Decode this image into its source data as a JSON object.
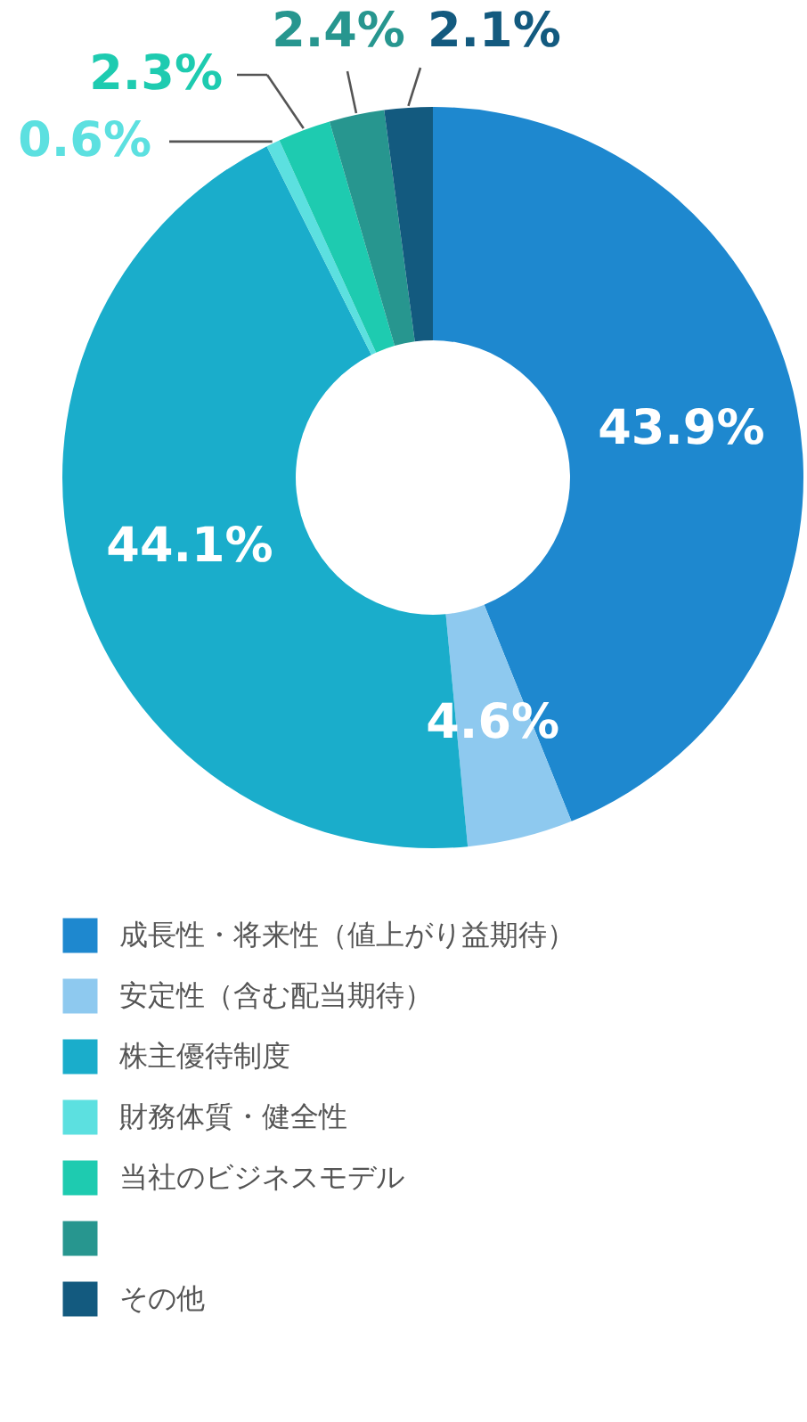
{
  "chart_data": {
    "type": "donut",
    "categories": [
      "成長性・将来性（値上がり益期待）",
      "安定性（含む配当期待）",
      "株主優待制度",
      "財務体質・健全性",
      "当社のビジネスモデル",
      null,
      "その他"
    ],
    "values": [
      43.9,
      4.6,
      44.1,
      0.6,
      2.3,
      2.4,
      2.1
    ],
    "colors": [
      "#1e88cf",
      "#8ec9ef",
      "#1aadcb",
      "#5ce0e0",
      "#1ecbb0",
      "#27968f",
      "#135a7f"
    ],
    "value_labels": [
      "43.9%",
      "4.6%",
      "44.1%",
      "0.6%",
      "2.3%",
      "2.4%",
      "2.1%"
    ],
    "legend": "bottom"
  }
}
